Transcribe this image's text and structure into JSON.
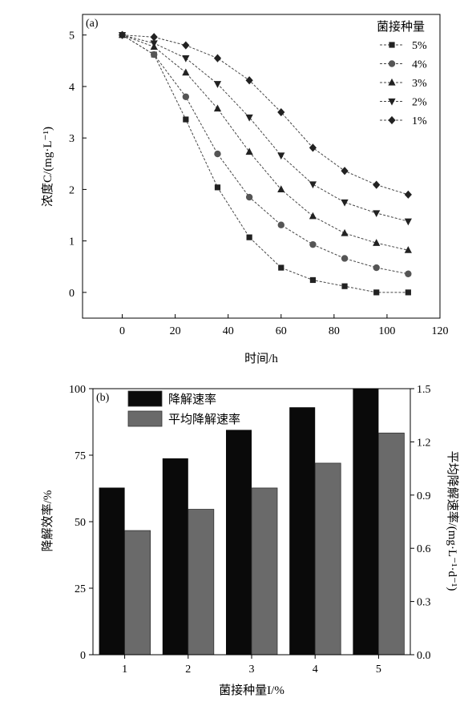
{
  "chart_data": [
    {
      "panel_label": "(a)",
      "type": "line",
      "xlabel": "时间/h",
      "ylabel": "浓度C/(mg·L⁻¹)",
      "xlim": [
        -15,
        120
      ],
      "ylim": [
        -0.5,
        5.4
      ],
      "xticks": [
        0,
        20,
        40,
        60,
        80,
        100,
        120
      ],
      "yticks": [
        0,
        1,
        2,
        3,
        4,
        5
      ],
      "grid": false,
      "legend_title": "菌接种量",
      "legend_position": "top-right",
      "x": [
        0,
        12,
        24,
        36,
        48,
        60,
        72,
        84,
        96,
        108
      ],
      "series": [
        {
          "name": "5%",
          "marker": "square",
          "values": [
            5.0,
            4.62,
            3.36,
            2.04,
            1.07,
            0.48,
            0.24,
            0.12,
            0.0,
            0.0
          ]
        },
        {
          "name": "4%",
          "marker": "circle",
          "values": [
            5.0,
            4.62,
            3.8,
            2.69,
            1.85,
            1.31,
            0.93,
            0.66,
            0.48,
            0.36
          ]
        },
        {
          "name": "3%",
          "marker": "triangle-up",
          "values": [
            5.0,
            4.77,
            4.27,
            3.57,
            2.73,
            2.0,
            1.48,
            1.15,
            0.96,
            0.82
          ]
        },
        {
          "name": "2%",
          "marker": "triangle-down",
          "values": [
            5.0,
            4.84,
            4.55,
            4.05,
            3.4,
            2.66,
            2.1,
            1.75,
            1.54,
            1.38
          ]
        },
        {
          "name": "1%",
          "marker": "diamond",
          "values": [
            5.0,
            4.96,
            4.8,
            4.55,
            4.12,
            3.5,
            2.81,
            2.36,
            2.09,
            1.9
          ]
        }
      ]
    },
    {
      "panel_label": "(b)",
      "type": "bar",
      "xlabel": "菌接种量I/%",
      "ylabel": "降解效率/%",
      "y2label": "平均降解速率/(mg·L⁻¹·d⁻¹)",
      "categories": [
        "1",
        "2",
        "3",
        "4",
        "5"
      ],
      "ylim": [
        0,
        100
      ],
      "y2lim": [
        0,
        1.5
      ],
      "yticks": [
        0,
        25,
        50,
        75,
        100
      ],
      "y2ticks": [
        "0.0",
        "0.3",
        "0.6",
        "0.9",
        "1.2",
        "1.5"
      ],
      "grid": false,
      "legend_position": "top-left",
      "series": [
        {
          "name": "降解速率",
          "color": "#0a0a0a",
          "axis": "left",
          "values": [
            62.8,
            73.8,
            84.5,
            93.0,
            100.0
          ]
        },
        {
          "name": "平均降解速率",
          "color": "#6a6a6a",
          "axis": "right",
          "values": [
            0.7,
            0.82,
            0.94,
            1.08,
            1.25
          ]
        }
      ]
    }
  ]
}
